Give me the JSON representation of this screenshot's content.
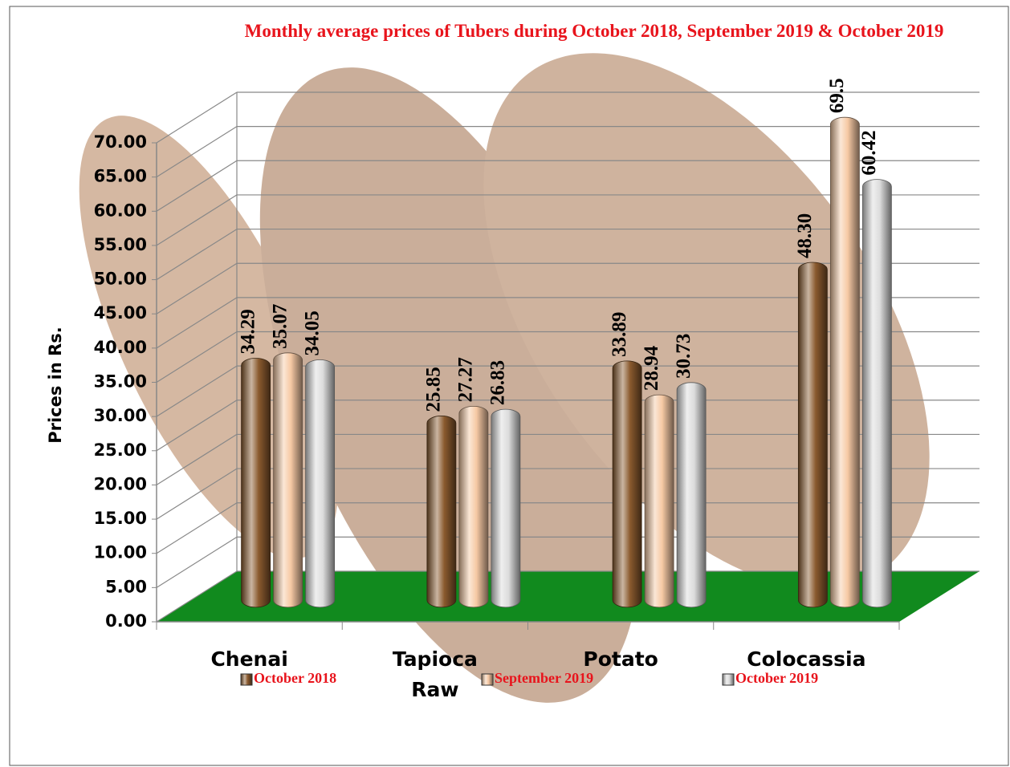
{
  "chart_data": {
    "type": "bar3d",
    "title": "Monthly average  prices of Tubers during  October  2018, September 2019  & October 2019",
    "y_label": "Prices in Rs.",
    "categories": [
      "Chenai",
      "Tapioca Raw",
      "Potato",
      "Colocassia"
    ],
    "series": [
      {
        "name": "October 2018",
        "color": "#8a5a2e",
        "values": [
          34.29,
          25.85,
          33.89,
          48.3
        ],
        "value_labels": [
          "34.29",
          "25.85",
          "33.89",
          "48.30"
        ]
      },
      {
        "name": "September 2019",
        "color": "#f6c9a4",
        "values": [
          35.07,
          27.27,
          28.94,
          69.5
        ],
        "value_labels": [
          "35.07",
          "27.27",
          "28.94",
          "69.5"
        ]
      },
      {
        "name": "October 2019",
        "color": "#dcdcdc",
        "values": [
          34.05,
          26.83,
          30.73,
          60.42
        ],
        "value_labels": [
          "34.05",
          "26.83",
          "30.73",
          "60.42"
        ]
      }
    ],
    "ylim": [
      0,
      70
    ],
    "yticks": [
      {
        "value": 0,
        "label": "0.00"
      },
      {
        "value": 5,
        "label": "5.00"
      },
      {
        "value": 10,
        "label": "10.00"
      },
      {
        "value": 15,
        "label": "15.00"
      },
      {
        "value": 20,
        "label": "20.00"
      },
      {
        "value": 25,
        "label": "25.00"
      },
      {
        "value": 30,
        "label": "30.00"
      },
      {
        "value": 35,
        "label": "35.00"
      },
      {
        "value": 40,
        "label": "40.00"
      },
      {
        "value": 45,
        "label": "45.00"
      },
      {
        "value": 50,
        "label": "50.00"
      },
      {
        "value": 55,
        "label": "55.00"
      },
      {
        "value": 60,
        "label": "60.00"
      },
      {
        "value": 65,
        "label": "65.00"
      },
      {
        "value": 70,
        "label": "70.00"
      }
    ],
    "grid": true,
    "floor_color": "#118a1e",
    "legend": "bottom"
  }
}
